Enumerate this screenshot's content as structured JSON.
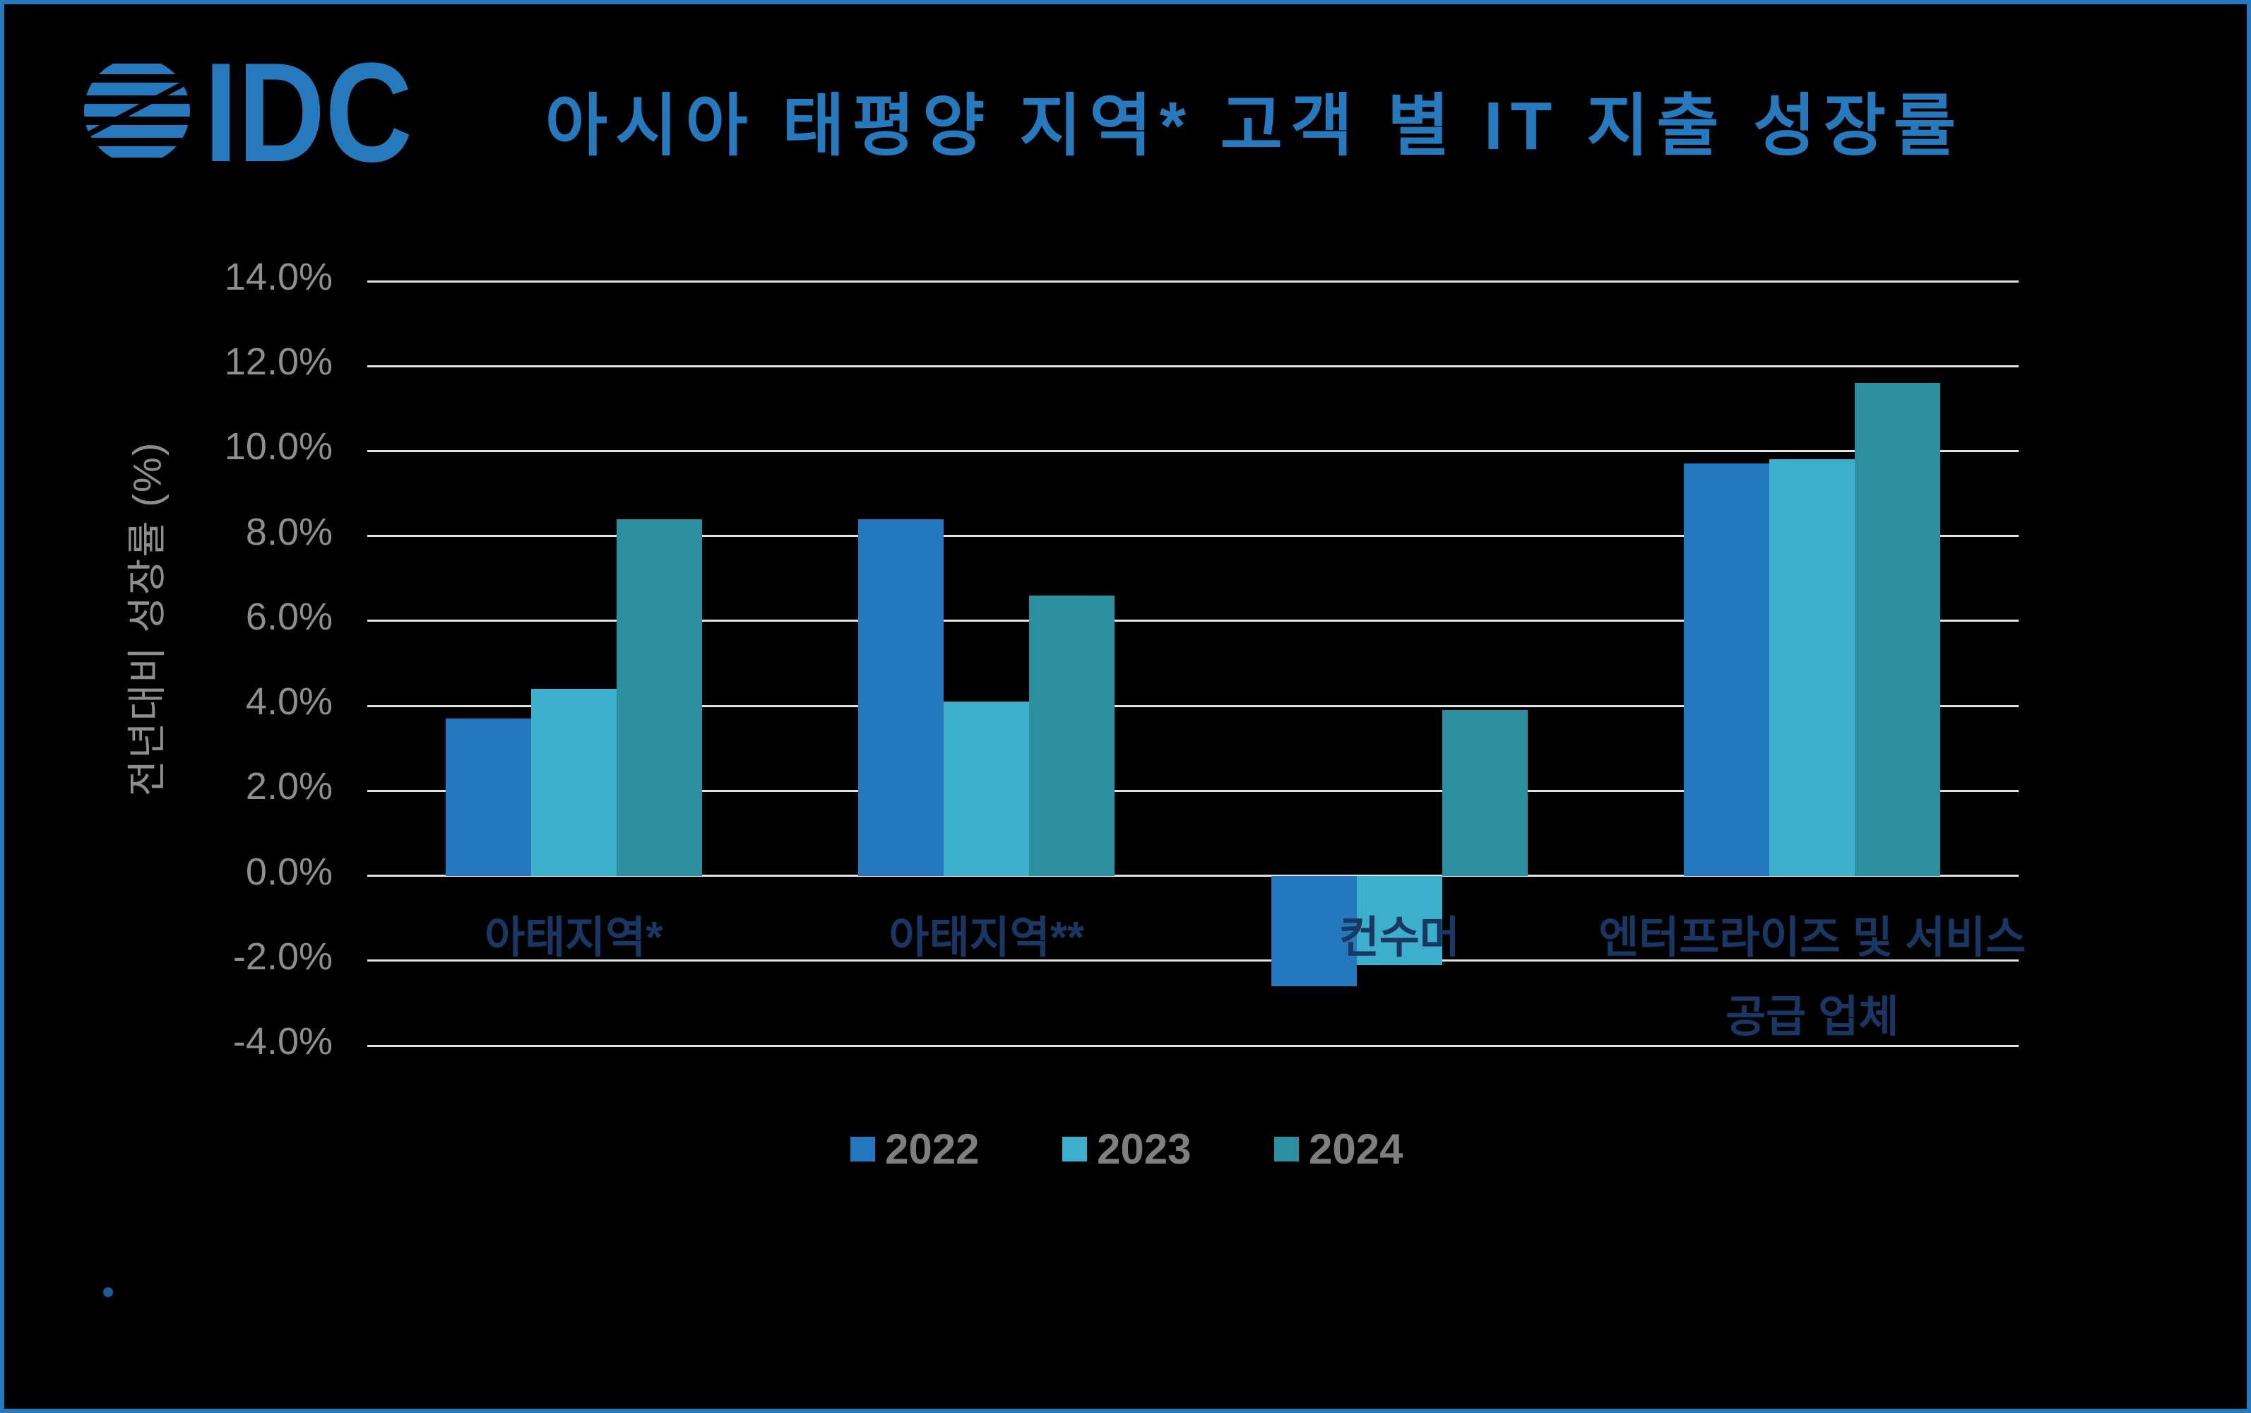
{
  "brand": {
    "logo_text": "IDC"
  },
  "title": "아시아 태평양 지역* 고객 별 IT 지출 성장률",
  "colors": {
    "accent_blue": "#2779BE",
    "series_2022": "#2478BE",
    "series_2023": "#3BAFCC",
    "series_2024": "#2C8F9F",
    "label_navy": "#1A3764",
    "axis_gray": "#8E8E8E",
    "legend_gray": "#7F7F7F",
    "gridline": "#E2E2E2",
    "background": "#000000",
    "border_blue": "#2779BE",
    "footnote_dot": "#1D5A96"
  },
  "chart_data": {
    "type": "bar",
    "title": "아시아 태평양 지역* 고객 별 IT 지출 성장률",
    "ylabel": "전년대비 성장률 (%)",
    "categories": [
      "아태지역*",
      "아태지역**",
      "컨수머",
      "엔터프라이즈 및 서비스 공급 업체"
    ],
    "category_label_lines": [
      [
        "아태지역*"
      ],
      [
        "아태지역**"
      ],
      [
        "컨수머"
      ],
      [
        "엔터프라이즈 및 서비스",
        "공급 업체"
      ]
    ],
    "series": [
      {
        "name": "2022",
        "values": [
          3.7,
          8.4,
          -2.6,
          9.7
        ]
      },
      {
        "name": "2023",
        "values": [
          4.4,
          4.1,
          -2.1,
          9.8
        ]
      },
      {
        "name": "2024",
        "values": [
          8.4,
          6.6,
          3.9,
          11.6
        ]
      }
    ],
    "ylim": [
      -4,
      14
    ],
    "ytick_step": 2,
    "yticks": [
      "14.0%",
      "12.0%",
      "10.0%",
      "8.0%",
      "6.0%",
      "4.0%",
      "2.0%",
      "0.0%",
      "-2.0%",
      "-4.0%"
    ],
    "grid": true,
    "legend_position": "bottom",
    "legend_entries": [
      "2022",
      "2023",
      "2024"
    ]
  }
}
